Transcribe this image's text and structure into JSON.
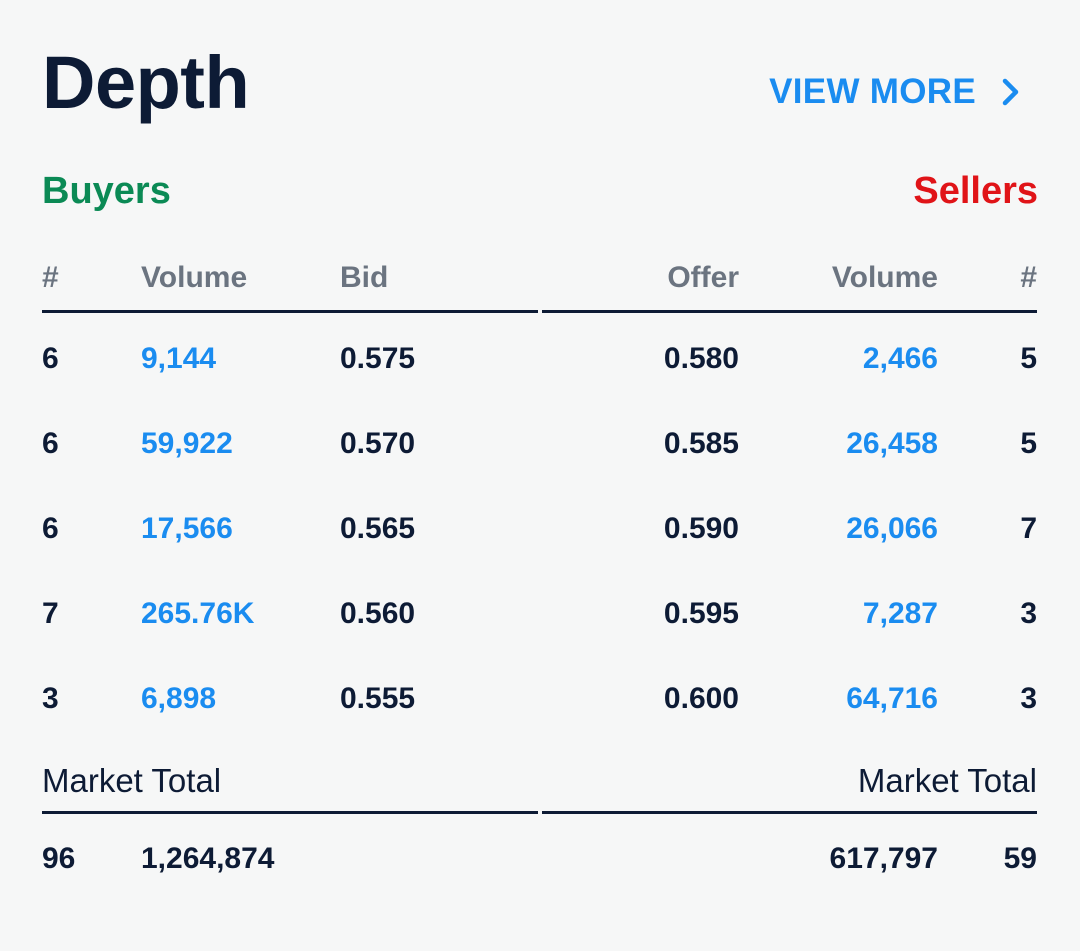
{
  "header": {
    "title": "Depth",
    "view_more_label": "VIEW MORE"
  },
  "sides": {
    "buyers_label": "Buyers",
    "sellers_label": "Sellers"
  },
  "columns": {
    "buy_count": "#",
    "buy_volume": "Volume",
    "bid": "Bid",
    "offer": "Offer",
    "sell_volume": "Volume",
    "sell_count": "#"
  },
  "rows": [
    {
      "buy_count": "6",
      "buy_volume": "9,144",
      "bid": "0.575",
      "offer": "0.580",
      "sell_volume": "2,466",
      "sell_count": "5"
    },
    {
      "buy_count": "6",
      "buy_volume": "59,922",
      "bid": "0.570",
      "offer": "0.585",
      "sell_volume": "26,458",
      "sell_count": "5"
    },
    {
      "buy_count": "6",
      "buy_volume": "17,566",
      "bid": "0.565",
      "offer": "0.590",
      "sell_volume": "26,066",
      "sell_count": "7"
    },
    {
      "buy_count": "7",
      "buy_volume": "265.76K",
      "bid": "0.560",
      "offer": "0.595",
      "sell_volume": "7,287",
      "sell_count": "3"
    },
    {
      "buy_count": "3",
      "buy_volume": "6,898",
      "bid": "0.555",
      "offer": "0.600",
      "sell_volume": "64,716",
      "sell_count": "3"
    }
  ],
  "totals": {
    "buy_label": "Market Total",
    "sell_label": "Market Total",
    "buy_count": "96",
    "buy_volume": "1,264,874",
    "sell_volume": "617,797",
    "sell_count": "59"
  },
  "colors": {
    "accent": "#1a8cf0",
    "buyers": "#0b8a55",
    "sellers": "#e01418",
    "text": "#0d1b35",
    "muted": "#6b7480",
    "background": "#f6f7f7"
  },
  "icons": {
    "view_more": "chevron-right-icon"
  }
}
